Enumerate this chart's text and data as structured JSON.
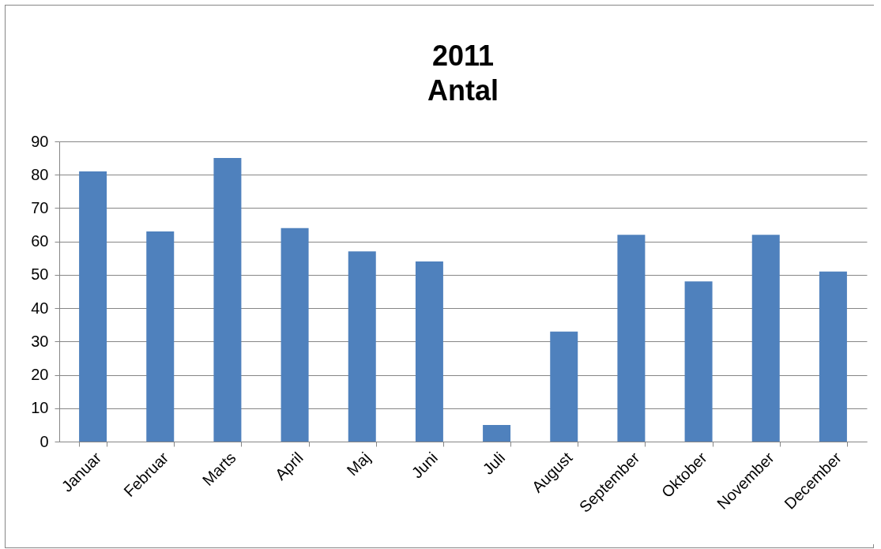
{
  "chart_data": {
    "type": "bar",
    "title": "2011",
    "subtitle": "Antal",
    "categories": [
      "Januar",
      "Februar",
      "Marts",
      "April",
      "Maj",
      "Juni",
      "Juli",
      "August",
      "September",
      "Oktober",
      "November",
      "December"
    ],
    "values": [
      81,
      63,
      85,
      64,
      57,
      54,
      5,
      33,
      62,
      48,
      62,
      51
    ],
    "color": "#4f81bd",
    "ylim": [
      0,
      90
    ],
    "yticks": [
      0,
      10,
      20,
      30,
      40,
      50,
      60,
      70,
      80,
      90
    ],
    "grid": "y"
  }
}
